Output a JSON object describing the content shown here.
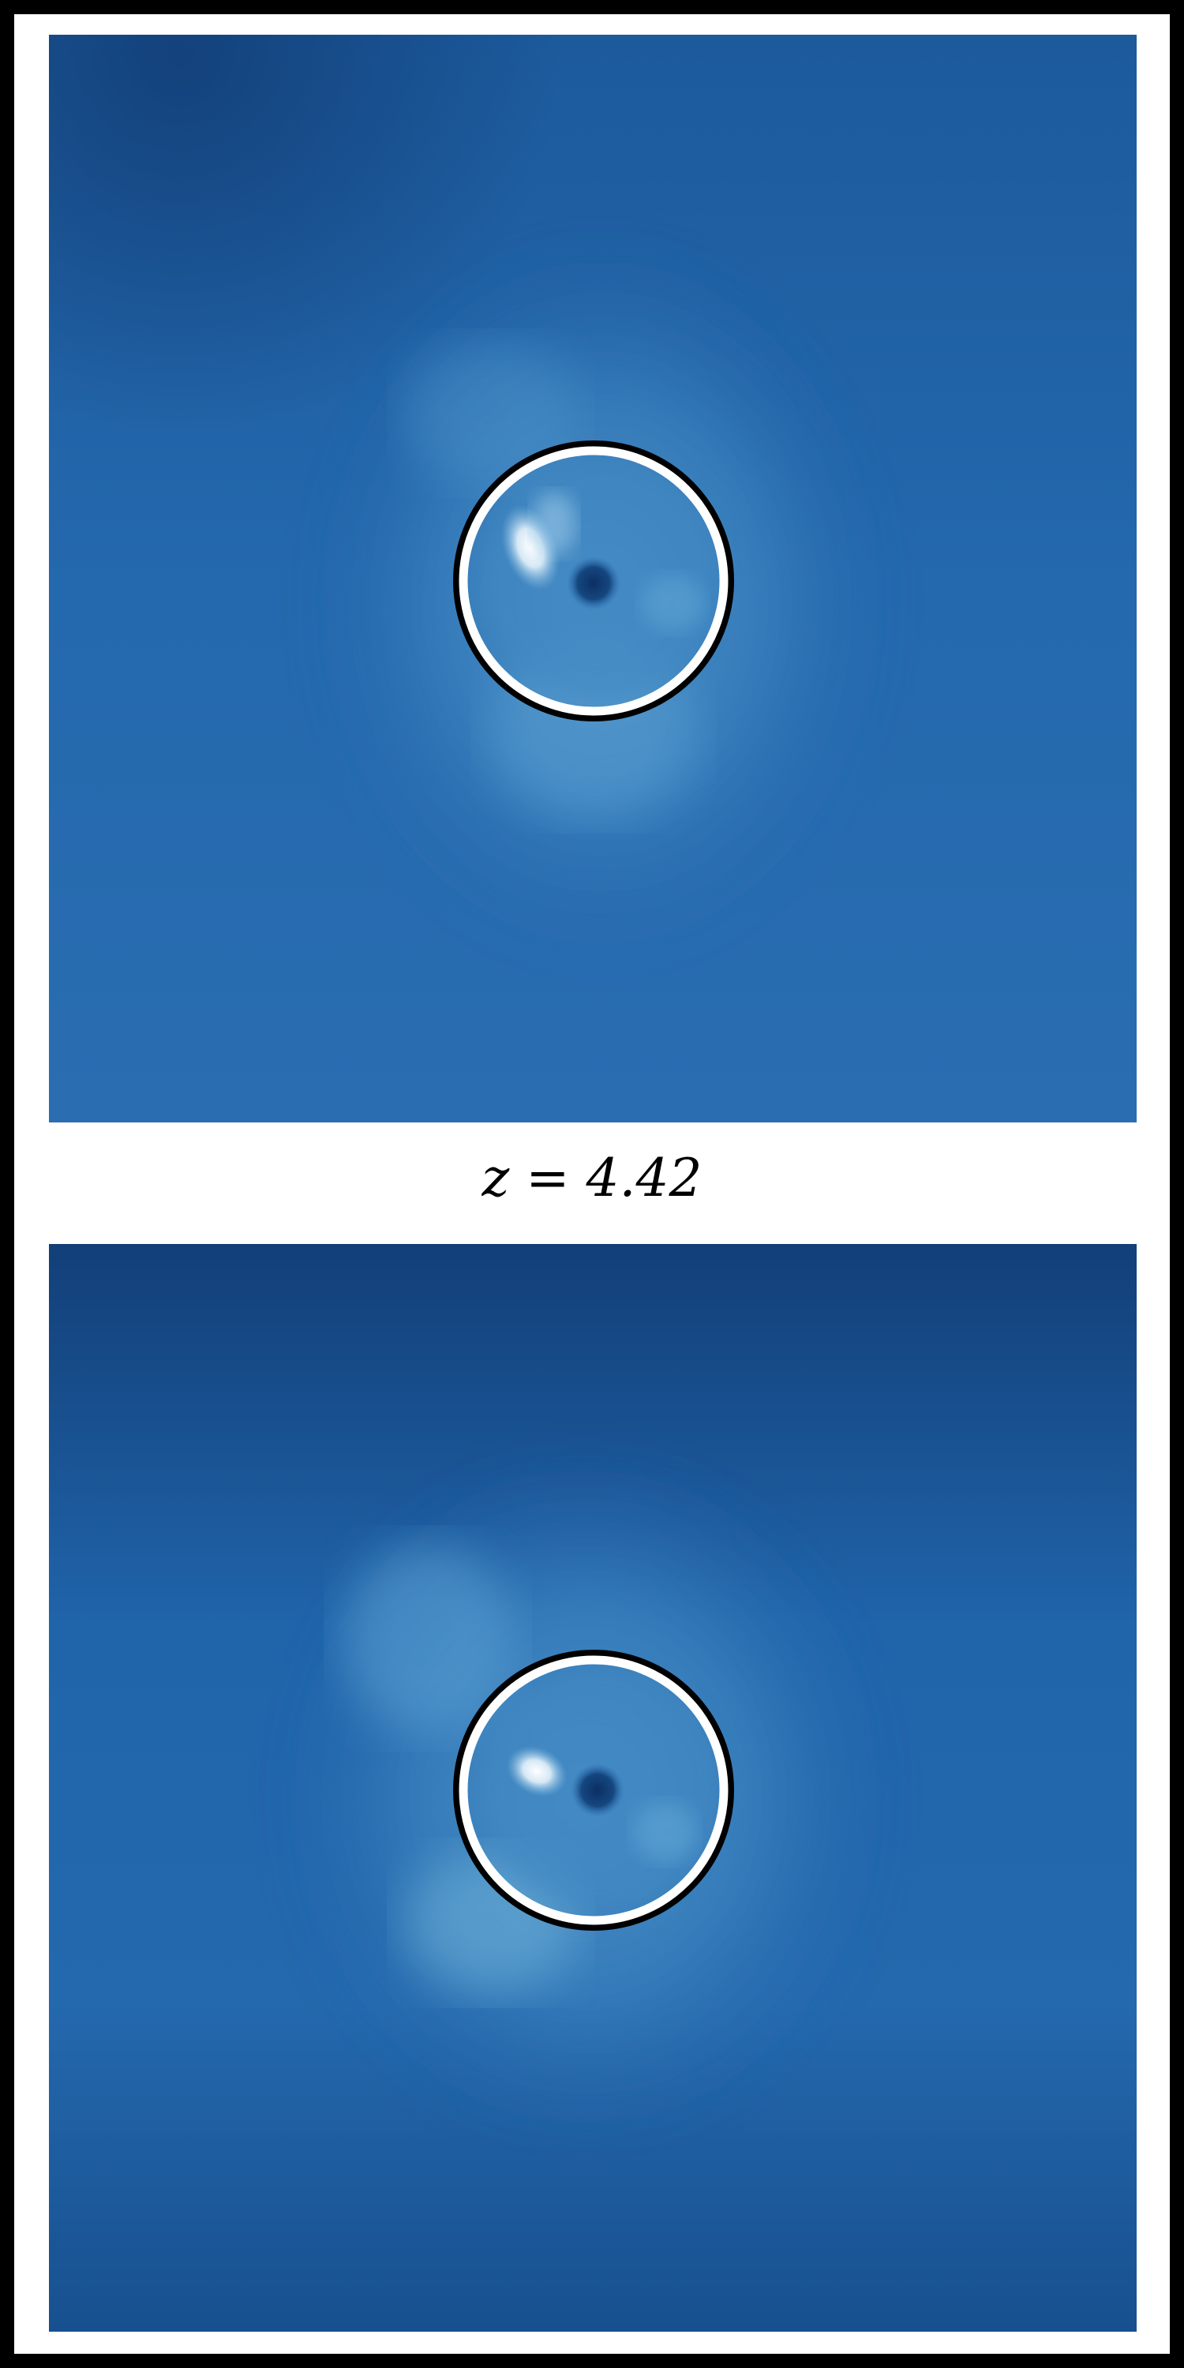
{
  "figure": {
    "label": "z = 4.42",
    "colors": {
      "outer_frame": "#000000",
      "background": "#ffffff",
      "field_dark": "#0c3c78",
      "field_mid": "#2166ac",
      "field_light": "#6aaed6",
      "circle_outline": "#ffffff",
      "circle_stroke": "#000000"
    },
    "panels": [
      {
        "name": "upper-panel"
      },
      {
        "name": "lower-panel"
      }
    ]
  }
}
